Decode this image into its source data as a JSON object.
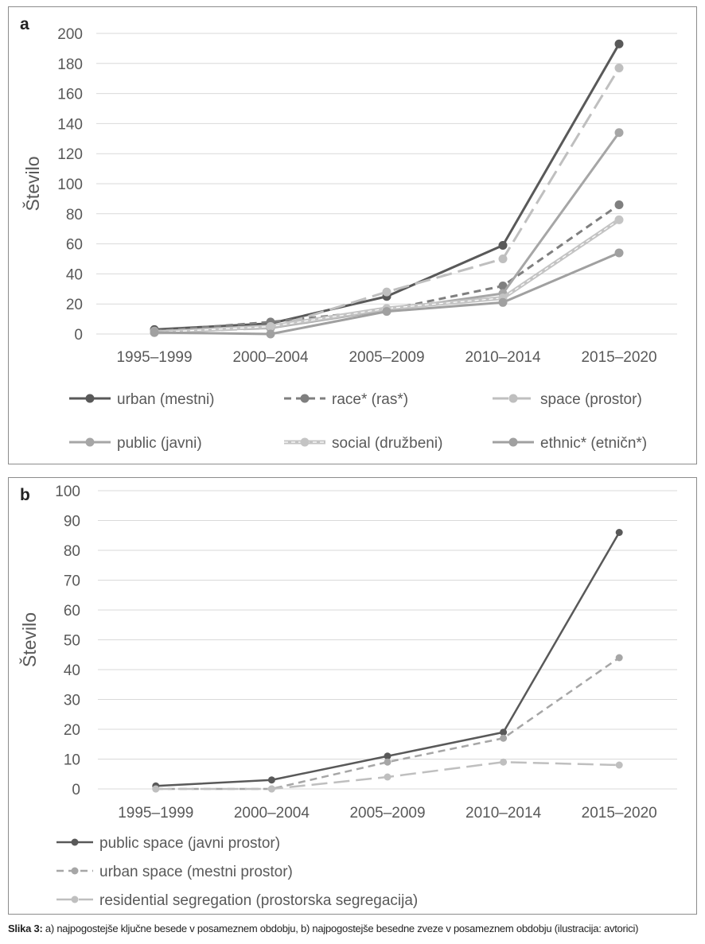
{
  "caption": {
    "label": "Slika 3:",
    "text": "a) najpogostejše ključne besede v posameznem obdobju, b) najpogostejše besedne zveze v posameznem obdobju (ilustracija: avtorici)"
  },
  "chart_data": [
    {
      "panel": "a",
      "type": "line",
      "categories": [
        "1995–1999",
        "2000–2004",
        "2005–2009",
        "2010–2014",
        "2015–2020"
      ],
      "ylabel": "Število",
      "xlabel": "",
      "ylim": [
        0,
        200
      ],
      "yticks": [
        0,
        20,
        40,
        60,
        80,
        100,
        120,
        140,
        160,
        180,
        200
      ],
      "grid": true,
      "legend_position": "bottom",
      "series": [
        {
          "name": "urban (mestni)",
          "values": [
            3,
            7,
            25,
            59,
            193
          ],
          "color": "#595959",
          "dash": "solid"
        },
        {
          "name": "race* (ras*)",
          "values": [
            2,
            8,
            16,
            32,
            86
          ],
          "color": "#7f7f7f",
          "dash": "dash"
        },
        {
          "name": "space (prostor)",
          "values": [
            1,
            4,
            28,
            50,
            177
          ],
          "color": "#bfbfbf",
          "dash": "longdash"
        },
        {
          "name": "public (javni)",
          "values": [
            2,
            4,
            16,
            27,
            134
          ],
          "color": "#a6a6a6",
          "dash": "solid"
        },
        {
          "name": "social (družbeni)",
          "values": [
            1,
            5,
            17,
            24,
            76
          ],
          "color": "#c4c4c4",
          "dash": "double"
        },
        {
          "name": "ethnic* (etničn*)",
          "values": [
            1,
            0,
            15,
            21,
            54
          ],
          "color": "#a0a0a0",
          "dash": "solid"
        }
      ]
    },
    {
      "panel": "b",
      "type": "line",
      "categories": [
        "1995–1999",
        "2000–2004",
        "2005–2009",
        "2010–2014",
        "2015–2020"
      ],
      "ylabel": "Število",
      "xlabel": "",
      "ylim": [
        0,
        100
      ],
      "yticks": [
        0,
        10,
        20,
        30,
        40,
        50,
        60,
        70,
        80,
        90,
        100
      ],
      "grid": true,
      "legend_position": "bottom",
      "series": [
        {
          "name": "public space (javni prostor)",
          "values": [
            1,
            3,
            11,
            19,
            86
          ],
          "color": "#595959",
          "dash": "solid"
        },
        {
          "name": "urban space (mestni prostor)",
          "values": [
            0,
            0,
            9,
            17,
            44
          ],
          "color": "#a6a6a6",
          "dash": "dash"
        },
        {
          "name": "residential segregation (prostorska segregacija)",
          "values": [
            0,
            0,
            4,
            9,
            8
          ],
          "color": "#bfbfbf",
          "dash": "longdash"
        }
      ]
    }
  ]
}
